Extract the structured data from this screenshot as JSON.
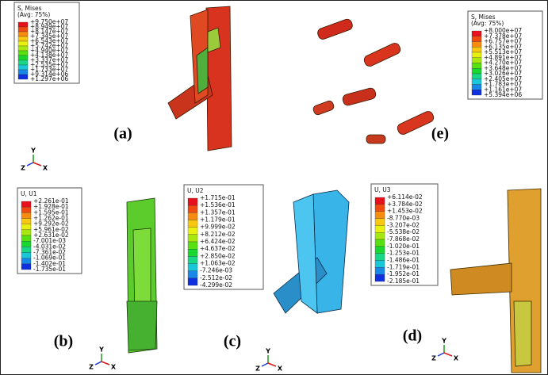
{
  "legends": [
    {
      "title": "S, Mises",
      "subtitle": "(Avg: 75%)",
      "values": [
        "+9.750e+07",
        "+8.949e+07",
        "+8.147e+07",
        "+7.345e+07",
        "+6.543e+07",
        "+5.742e+07",
        "+4.940e+07",
        "+4.138e+07",
        "+3.337e+07",
        "+2.535e+07",
        "+1.733e+07",
        "+9.314e+06",
        "+1.297e+06"
      ]
    },
    {
      "title": "S, Mises",
      "subtitle": "(Avg: 75%)",
      "values": [
        "+8.000e+07",
        "+7.378e+07",
        "+6.757e+07",
        "+6.135e+07",
        "+5.513e+07",
        "+4.891e+07",
        "+4.270e+07",
        "+3.648e+07",
        "+3.026e+07",
        "+2.405e+07",
        "+1.783e+07",
        "+1.161e+07",
        "+5.394e+06"
      ]
    },
    {
      "title": "U, U1",
      "values": [
        "+2.261e-01",
        "+1.928e-01",
        "+1.595e-01",
        "+1.262e-01",
        "+9.292e-02",
        "+5.961e-02",
        "+2.631e-02",
        "-7.001e-03",
        "-4.031e-02",
        "-7.361e-02",
        "-1.069e-01",
        "-1.402e-01",
        "-1.735e-01"
      ]
    },
    {
      "title": "U, U2",
      "values": [
        "+1.715e-01",
        "+1.536e-01",
        "+1.357e-01",
        "+1.179e-01",
        "+9.999e-02",
        "+8.212e-02",
        "+6.424e-02",
        "+4.637e-02",
        "+2.850e-02",
        "+1.063e-02",
        "-7.246e-03",
        "-2.512e-02",
        "-4.299e-02"
      ]
    },
    {
      "title": "U, U3",
      "values": [
        "+6.114e-02",
        "+3.784e-02",
        "+1.453e-02",
        "-8.770e-03",
        "-3.207e-02",
        "-5.538e-02",
        "-7.868e-02",
        "-1.020e-01",
        "-1.253e-01",
        "-1.486e-01",
        "-1.719e-01",
        "-1.952e-01",
        "-2.185e-01"
      ]
    }
  ],
  "panel_labels": [
    "(a)",
    "(e)",
    "(b)",
    "(c)",
    "(d)"
  ],
  "triads": [
    [
      "Y",
      "Z",
      "X"
    ],
    [
      "Y",
      "Z",
      "X"
    ],
    [
      "Y",
      "Z",
      "X"
    ],
    [
      "Y",
      "Z",
      "X"
    ]
  ]
}
